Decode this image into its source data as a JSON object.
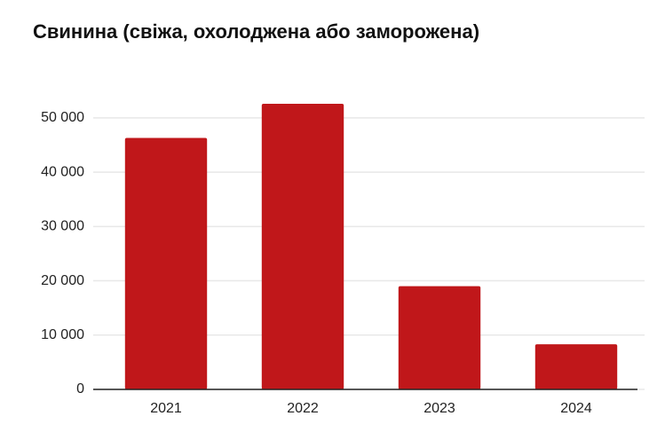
{
  "chart_data": {
    "type": "bar",
    "title": "Свинина (свіжа, охолоджена або заморожена)",
    "categories": [
      "2021",
      "2022",
      "2023",
      "2024"
    ],
    "values": [
      46300,
      52600,
      19000,
      8300
    ],
    "color": "#c0171a",
    "ylim": [
      0,
      57000
    ],
    "yticks": [
      0,
      {
        "value": 10000,
        "label": "10 000"
      },
      {
        "value": 20000,
        "label": "20 000"
      },
      {
        "value": 30000,
        "label": "30 000"
      },
      {
        "value": 40000,
        "label": "40 000"
      },
      {
        "value": 50000,
        "label": "50 000"
      }
    ],
    "grid": true
  }
}
